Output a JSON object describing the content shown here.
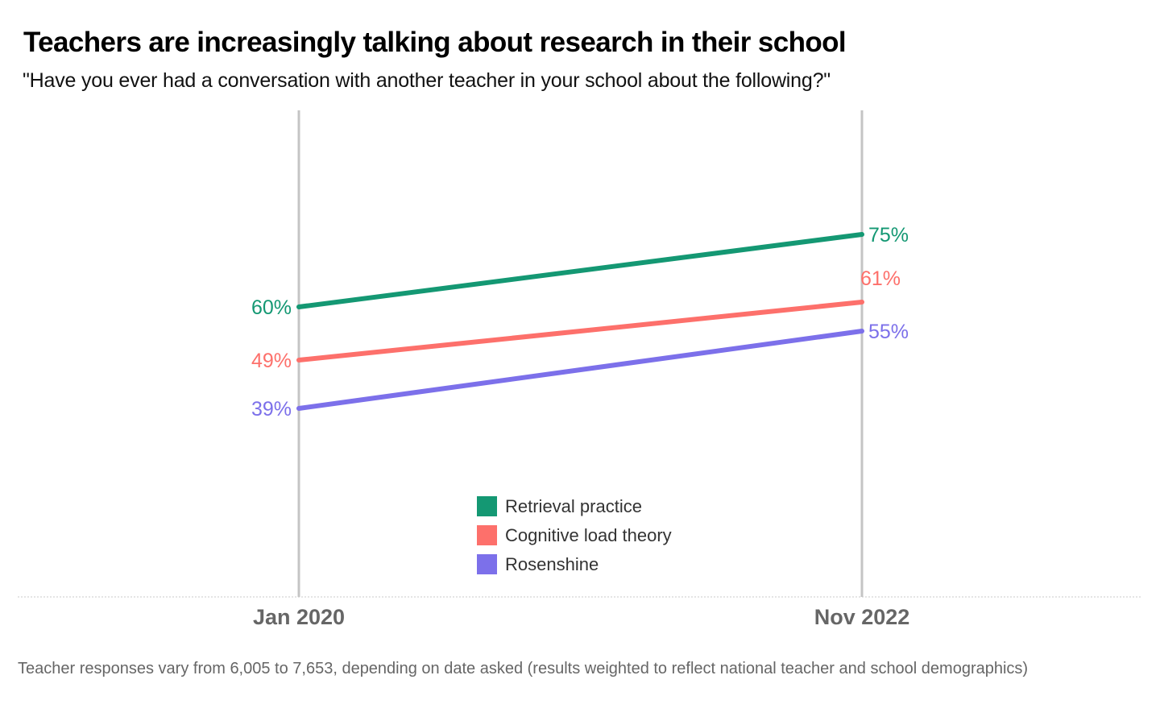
{
  "header": {
    "title": "Teachers are increasingly talking about research in their school",
    "subtitle": "\"Have you ever had a conversation with another teacher in your school about the following?\""
  },
  "footnote": "Teacher responses vary from 6,005 to 7,653, depending on date asked (results weighted to reflect national teacher and school demographics)",
  "chart_data": {
    "type": "line",
    "title": "Teachers are increasingly talking about research in their school",
    "subtitle": "\"Have you ever had a conversation with another teacher in your school about the following?\"",
    "xlabel": "",
    "ylabel": "",
    "categories": [
      "Jan 2020",
      "Nov 2022"
    ],
    "ylim": [
      0,
      100
    ],
    "grid": false,
    "legend_position": "bottom-center",
    "series": [
      {
        "name": "Retrieval practice",
        "color": "#149873",
        "values": [
          60,
          75
        ],
        "labels": [
          "60%",
          "75%"
        ]
      },
      {
        "name": "Cognitive load theory",
        "color": "#fd706b",
        "values": [
          49,
          61
        ],
        "labels": [
          "49%",
          "61%"
        ]
      },
      {
        "name": "Rosenshine",
        "color": "#7c70ea",
        "values": [
          39,
          55
        ],
        "labels": [
          "39%",
          "55%"
        ]
      }
    ]
  }
}
